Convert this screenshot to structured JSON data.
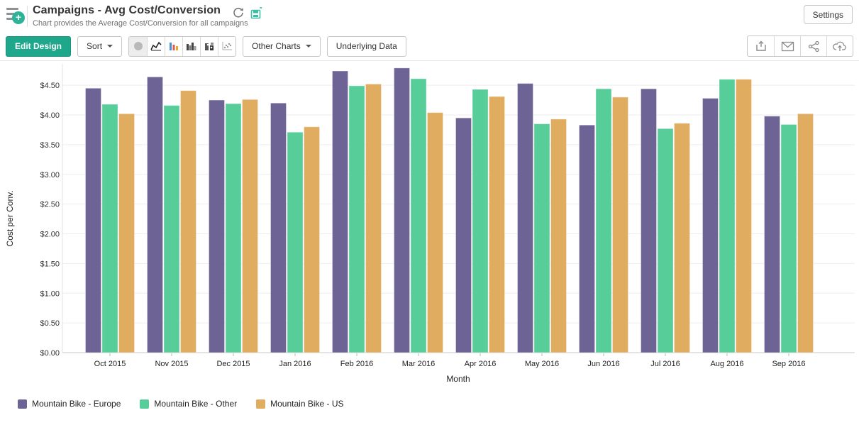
{
  "header": {
    "title": "Campaigns - Avg Cost/Conversion",
    "subtitle": "Chart provides the Average Cost/Conversion for all campaigns",
    "settings_label": "Settings"
  },
  "toolbar": {
    "edit_design_label": "Edit Design",
    "sort_label": "Sort",
    "other_charts_label": "Other Charts",
    "underlying_data_label": "Underlying Data",
    "chart_type_icons": [
      "gauge-chart",
      "line-chart",
      "bar-chart-colored",
      "bar-chart-dark",
      "stacked-chart",
      "scatter-chart"
    ],
    "action_icons": [
      "export",
      "email",
      "share",
      "cloud-upload"
    ]
  },
  "colors": {
    "accent_teal": "#1fa78b",
    "save_icon_teal": "#3dbca6",
    "series_europe": "#6e6395",
    "series_other": "#57ce99",
    "series_us": "#dfac60",
    "gridline": "#ededed",
    "axis_line": "#c9c9c9"
  },
  "chart_data": {
    "type": "bar",
    "title": "Campaigns - Avg Cost/Conversion",
    "xlabel": "Month",
    "ylabel": "Cost per Conv.",
    "categories": [
      "Oct 2015",
      "Nov 2015",
      "Dec 2015",
      "Jan 2016",
      "Feb 2016",
      "Mar 2016",
      "Apr 2016",
      "May 2016",
      "Jun 2016",
      "Jul 2016",
      "Aug 2016",
      "Sep 2016"
    ],
    "series": [
      {
        "name": "Mountain Bike - Europe",
        "color": "#6e6395",
        "values": [
          4.45,
          4.64,
          4.25,
          4.2,
          4.74,
          4.79,
          3.95,
          4.53,
          3.83,
          4.44,
          4.28,
          3.98
        ]
      },
      {
        "name": "Mountain Bike - Other",
        "color": "#57ce99",
        "values": [
          4.18,
          4.16,
          4.19,
          3.71,
          4.49,
          4.61,
          4.43,
          3.85,
          4.44,
          3.77,
          4.6,
          3.84
        ]
      },
      {
        "name": "Mountain Bike - US",
        "color": "#dfac60",
        "values": [
          4.02,
          4.41,
          4.26,
          3.8,
          4.52,
          4.04,
          4.31,
          3.93,
          4.3,
          3.86,
          4.6,
          4.02
        ]
      }
    ],
    "ylim": [
      0,
      4.86
    ],
    "ytick_step": 0.5,
    "ytick_labels": [
      "$0.00",
      "$0.50",
      "$1.00",
      "$1.50",
      "$2.00",
      "$2.50",
      "$3.00",
      "$3.50",
      "$4.00",
      "$4.50"
    ],
    "grid": true,
    "legend_position": "bottom-left"
  }
}
